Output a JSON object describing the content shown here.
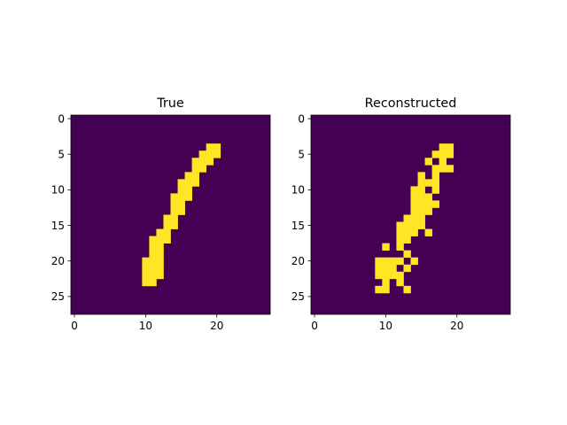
{
  "colors": {
    "background": "#440154",
    "foreground": "#fde725",
    "axis": "#000000"
  },
  "chart_data": [
    {
      "type": "heatmap",
      "title": "True",
      "size": 28,
      "xticks": [
        0,
        10,
        20
      ],
      "yticks": [
        0,
        5,
        10,
        15,
        20,
        25
      ],
      "rows": [
        {
          "row": 4,
          "cols": [
            19,
            20
          ]
        },
        {
          "row": 5,
          "cols": [
            18,
            19,
            20
          ]
        },
        {
          "row": 6,
          "cols": [
            17,
            18,
            19
          ]
        },
        {
          "row": 7,
          "cols": [
            17,
            18
          ]
        },
        {
          "row": 8,
          "cols": [
            16,
            17
          ]
        },
        {
          "row": 9,
          "cols": [
            15,
            16,
            17
          ]
        },
        {
          "row": 10,
          "cols": [
            15,
            16
          ]
        },
        {
          "row": 11,
          "cols": [
            14,
            15,
            16
          ]
        },
        {
          "row": 12,
          "cols": [
            14,
            15
          ]
        },
        {
          "row": 13,
          "cols": [
            14,
            15
          ]
        },
        {
          "row": 14,
          "cols": [
            13,
            14
          ]
        },
        {
          "row": 15,
          "cols": [
            13,
            14
          ]
        },
        {
          "row": 16,
          "cols": [
            12,
            13
          ]
        },
        {
          "row": 17,
          "cols": [
            11,
            12,
            13
          ]
        },
        {
          "row": 18,
          "cols": [
            11,
            12
          ]
        },
        {
          "row": 19,
          "cols": [
            11,
            12
          ]
        },
        {
          "row": 20,
          "cols": [
            10,
            11,
            12
          ]
        },
        {
          "row": 21,
          "cols": [
            10,
            11,
            12
          ]
        },
        {
          "row": 22,
          "cols": [
            10,
            11,
            12
          ]
        },
        {
          "row": 23,
          "cols": [
            10,
            11
          ]
        }
      ]
    },
    {
      "type": "heatmap",
      "title": "Reconstructed",
      "size": 28,
      "xticks": [
        0,
        10,
        20
      ],
      "yticks": [
        0,
        5,
        10,
        15,
        20,
        25
      ],
      "rows": [
        {
          "row": 4,
          "cols": [
            18,
            19
          ]
        },
        {
          "row": 5,
          "cols": [
            17,
            18,
            19
          ]
        },
        {
          "row": 6,
          "cols": [
            16,
            18
          ]
        },
        {
          "row": 7,
          "cols": [
            17,
            18,
            19
          ]
        },
        {
          "row": 8,
          "cols": [
            15,
            17
          ]
        },
        {
          "row": 9,
          "cols": [
            15,
            16,
            17
          ]
        },
        {
          "row": 10,
          "cols": [
            14,
            15,
            17
          ]
        },
        {
          "row": 11,
          "cols": [
            14,
            15,
            16
          ]
        },
        {
          "row": 12,
          "cols": [
            14,
            15,
            16,
            17
          ]
        },
        {
          "row": 13,
          "cols": [
            14,
            15,
            16
          ]
        },
        {
          "row": 14,
          "cols": [
            13,
            14,
            15
          ]
        },
        {
          "row": 15,
          "cols": [
            12,
            13,
            14,
            15
          ]
        },
        {
          "row": 16,
          "cols": [
            12,
            13,
            14,
            16
          ]
        },
        {
          "row": 17,
          "cols": [
            12,
            13
          ]
        },
        {
          "row": 18,
          "cols": [
            10,
            12
          ]
        },
        {
          "row": 19,
          "cols": [
            13
          ]
        },
        {
          "row": 20,
          "cols": [
            9,
            10,
            11,
            12,
            14
          ]
        },
        {
          "row": 21,
          "cols": [
            9,
            10,
            11,
            13
          ]
        },
        {
          "row": 22,
          "cols": [
            9,
            10,
            11,
            12
          ]
        },
        {
          "row": 23,
          "cols": [
            10,
            12
          ]
        },
        {
          "row": 24,
          "cols": [
            9,
            10,
            13
          ]
        }
      ]
    }
  ]
}
